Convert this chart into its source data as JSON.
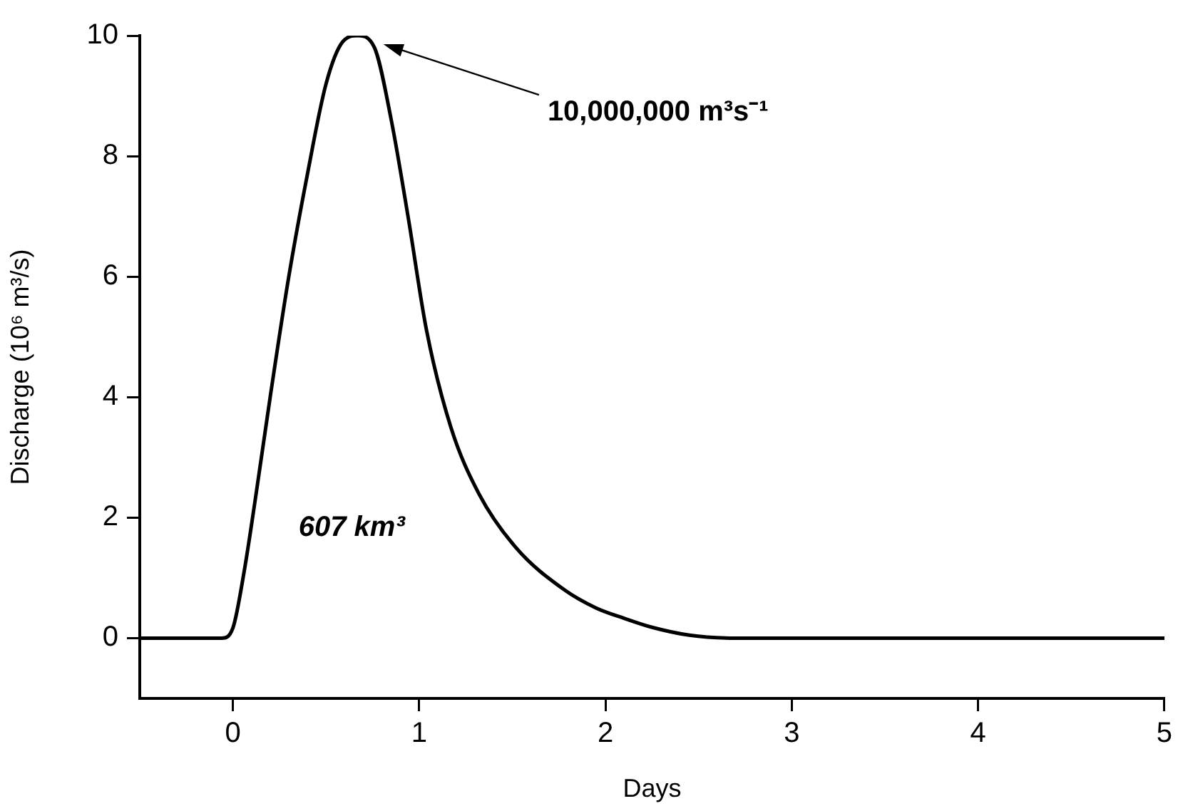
{
  "chart_data": {
    "type": "line",
    "xlabel": "Days",
    "ylabel": "Discharge (10⁶ m³/s)",
    "x": [
      -0.5,
      -0.06,
      0,
      0.06,
      0.12,
      0.2,
      0.3,
      0.4,
      0.5,
      0.59,
      0.67,
      0.76,
      0.85,
      0.94,
      1.04,
      1.17,
      1.32,
      1.52,
      1.78,
      1.95,
      2.1,
      2.25,
      2.45,
      2.7,
      3,
      4,
      5
    ],
    "series": [
      {
        "color": "#000000",
        "values": [
          0,
          0,
          0.17,
          1.1,
          2.3,
          4.0,
          6.0,
          7.7,
          9.2,
          9.9,
          10,
          9.8,
          8.6,
          7.0,
          5.1,
          3.5,
          2.4,
          1.5,
          0.8,
          0.5,
          0.33,
          0.18,
          0.05,
          0,
          0,
          0,
          0
        ]
      }
    ],
    "xlim": [
      -0.5,
      5
    ],
    "xticks": [
      0,
      1,
      2,
      3,
      4,
      5
    ],
    "ylim": [
      -1,
      10
    ],
    "yticks": [
      0,
      2,
      4,
      6,
      8,
      10
    ],
    "grid": false,
    "legend": false,
    "marker": "none",
    "line_style": "solid",
    "annotations": [
      "10,000,000 m³s⁻¹",
      "607 km³"
    ]
  }
}
